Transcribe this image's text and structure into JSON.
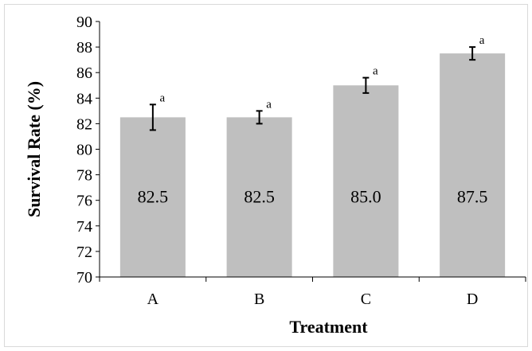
{
  "chart_data": {
    "type": "bar",
    "title": "",
    "xlabel": "Treatment",
    "ylabel": "Survival Rate (%)",
    "ylim": [
      70,
      90
    ],
    "yticks": [
      70,
      72,
      74,
      76,
      78,
      80,
      82,
      84,
      86,
      88,
      90
    ],
    "categories": [
      "A",
      "B",
      "C",
      "D"
    ],
    "values": [
      82.5,
      82.5,
      85.0,
      87.5
    ],
    "value_labels": [
      "82.5",
      "82.5",
      "85.0",
      "87.5"
    ],
    "error": [
      1.0,
      0.5,
      0.6,
      0.5
    ],
    "significance": [
      "a",
      "a",
      "a",
      "a"
    ],
    "grid": false,
    "legend": "none",
    "bar_color": "#bfbfbf"
  }
}
